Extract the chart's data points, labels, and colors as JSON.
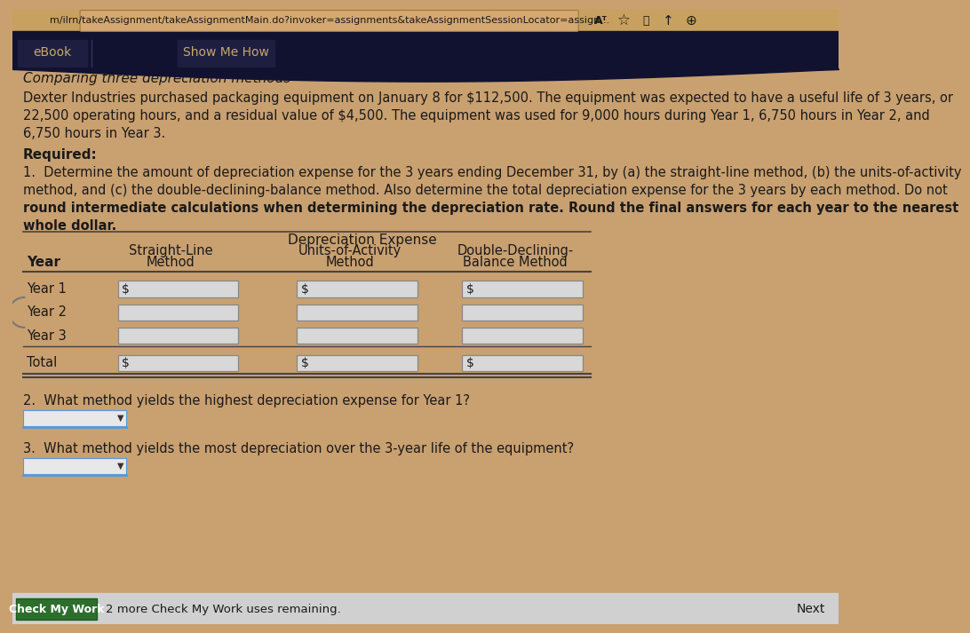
{
  "browser_bar_text": "m/ilrn/takeAssignment/takeAssignmentMain.do?invoker=assignments&takeAssignmentSessionLocator=assign...",
  "browser_bar_bg": "#c8a060",
  "nav_bg": "#111130",
  "ebook_text": "eBook",
  "show_me_how_text": "Show Me How",
  "page_bg": "#c9a070",
  "title": "Comparing three depreciation methods",
  "paragraph1": "Dexter Industries purchased packaging equipment on January 8 for $112,500. The equipment was expected to have a useful life of 3 years, or",
  "paragraph2": "22,500 operating hours, and a residual value of $4,500. The equipment was used for 9,000 hours during Year 1, 6,750 hours in Year 2, and",
  "paragraph3": "6,750 hours in Year 3.",
  "required_label": "Required:",
  "req1_line1": "1.  Determine the amount of depreciation expense for the 3 years ending December 31, by (a) the straight-line method, (b) the units-of-activity",
  "req1_line2": "method, and (c) the double-declining-balance method. Also determine the total depreciation expense for the 3 years by each method. Do not",
  "req1_line3": "round intermediate calculations when determining the depreciation rate. Round the final answers for each year to the nearest",
  "req1_line4": "whole dollar.",
  "table_header_center": "Depreciation Expense",
  "col1_header_line1": "Straight-Line",
  "col1_header_line2": "Method",
  "col2_header_line1": "Units-of-Activity",
  "col2_header_line2": "Method",
  "col3_header_line1": "Double-Declining-",
  "col3_header_line2": "Balance Method",
  "year_col": "Year",
  "rows": [
    "Year 1",
    "Year 2",
    "Year 3",
    "Total"
  ],
  "dollar_rows": [
    0,
    3
  ],
  "q2_text": "2.  What method yields the highest depreciation expense for Year 1?",
  "q3_text": "3.  What method yields the most depreciation over the 3-year life of the equipment?",
  "check_btn_text": "Check My Work",
  "check_remaining_text": "2 more Check My Work uses remaining.",
  "next_text": "Next",
  "check_btn_bg": "#2d6e2d",
  "check_btn_text_color": "#ffffff",
  "input_box_bg": "#d8d8d8",
  "input_box_border": "#888888",
  "dropdown_bg": "#e8e8e8",
  "dropdown_border": "#4a90d9",
  "text_color": "#1a1a1a",
  "bottom_bar_bg": "#d0d0d0",
  "nav_curve_color": "#111130",
  "table_line_color": "#444444",
  "title_style": "italic"
}
